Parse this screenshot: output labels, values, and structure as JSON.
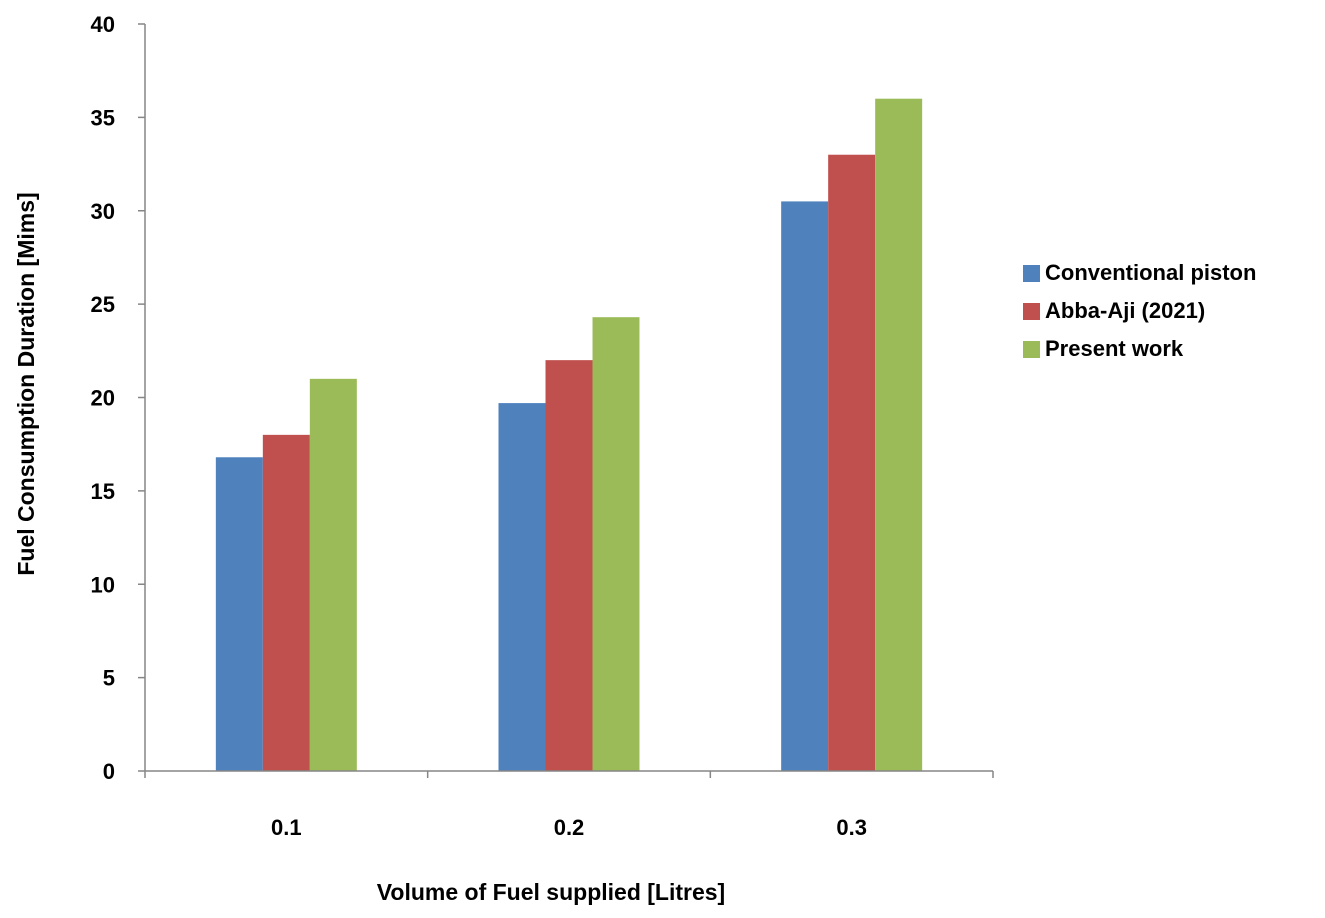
{
  "chart_data": {
    "type": "bar",
    "title": "",
    "xlabel": "Volume of Fuel supplied [Litres]",
    "ylabel": "Fuel Consumption Duration [Mims]",
    "categories": [
      "0.1",
      "0.2",
      "0.3"
    ],
    "series": [
      {
        "name": "Conventional piston",
        "color": "#4F81BD",
        "values": [
          16.8,
          19.7,
          30.5
        ]
      },
      {
        "name": "Abba-Aji (2021)",
        "color": "#C0504D",
        "values": [
          18.0,
          22.0,
          33.0
        ]
      },
      {
        "name": "Present work",
        "color": "#9BBB59",
        "values": [
          21.0,
          24.3,
          36.0
        ]
      }
    ],
    "ylim": [
      0,
      40
    ],
    "yticks": [
      "0",
      "5",
      "10",
      "15",
      "20",
      "25",
      "30",
      "35",
      "40"
    ],
    "grid": false,
    "legend_position": "right"
  }
}
